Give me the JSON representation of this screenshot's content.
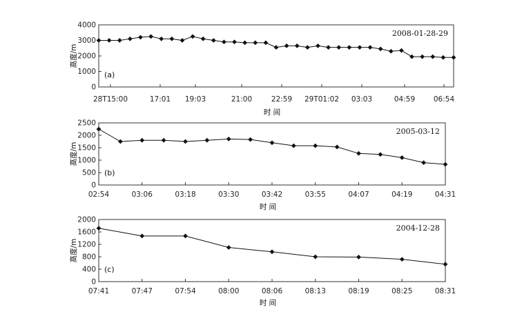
{
  "chart_data": [
    {
      "type": "line",
      "panel_label": "(a)",
      "annotation": "2008-01-28-29",
      "ylabel": "高度/m",
      "xlabel": "时 间",
      "ylim": [
        0,
        4000
      ],
      "yticks": [
        "0",
        "1000",
        "2000",
        "3000",
        "4000"
      ],
      "xtick_labels": [
        "28T15:00",
        "17:01",
        "19:03",
        "21:00",
        "22:59",
        "29T01:02",
        "03:03",
        "04:59",
        "06:54"
      ],
      "series": [
        {
          "values": [
            3000,
            3000,
            3000,
            3100,
            3200,
            3250,
            3100,
            3100,
            3000,
            3250,
            3100,
            3000,
            2900,
            2900,
            2850,
            2850,
            2850,
            2550,
            2650,
            2650,
            2550,
            2650,
            2550,
            2550,
            2550,
            2550,
            2550,
            2450,
            2300,
            2350,
            1950,
            1950,
            1950,
            1900,
            1900
          ]
        }
      ]
    },
    {
      "type": "line",
      "panel_label": "(b)",
      "annotation": "2005-03-12",
      "ylabel": "高度/m",
      "xlabel": "时 间",
      "ylim": [
        0,
        2500
      ],
      "yticks": [
        "0",
        "500",
        "1000",
        "1500",
        "2000",
        "2500"
      ],
      "xtick_labels": [
        "02:54",
        "03:06",
        "03:18",
        "03:30",
        "03:42",
        "03:55",
        "04:07",
        "04:19",
        "04:31"
      ],
      "series": [
        {
          "values": [
            2250,
            1750,
            1800,
            1800,
            1750,
            1800,
            1850,
            1830,
            1700,
            1580,
            1580,
            1530,
            1270,
            1230,
            1100,
            900,
            830
          ]
        }
      ]
    },
    {
      "type": "line",
      "panel_label": "(c)",
      "annotation": "2004-12-28",
      "ylabel": "高度/m",
      "xlabel": "时 间",
      "ylim": [
        0,
        2000
      ],
      "yticks": [
        "0",
        "400",
        "800",
        "1200",
        "1600",
        "2000"
      ],
      "xtick_labels": [
        "07:41",
        "07:47",
        "07:54",
        "08:00",
        "08:06",
        "08:13",
        "08:19",
        "08:25",
        "08:31"
      ],
      "series": [
        {
          "values": [
            1720,
            1470,
            1470,
            1100,
            960,
            800,
            790,
            720,
            560
          ]
        }
      ]
    }
  ]
}
